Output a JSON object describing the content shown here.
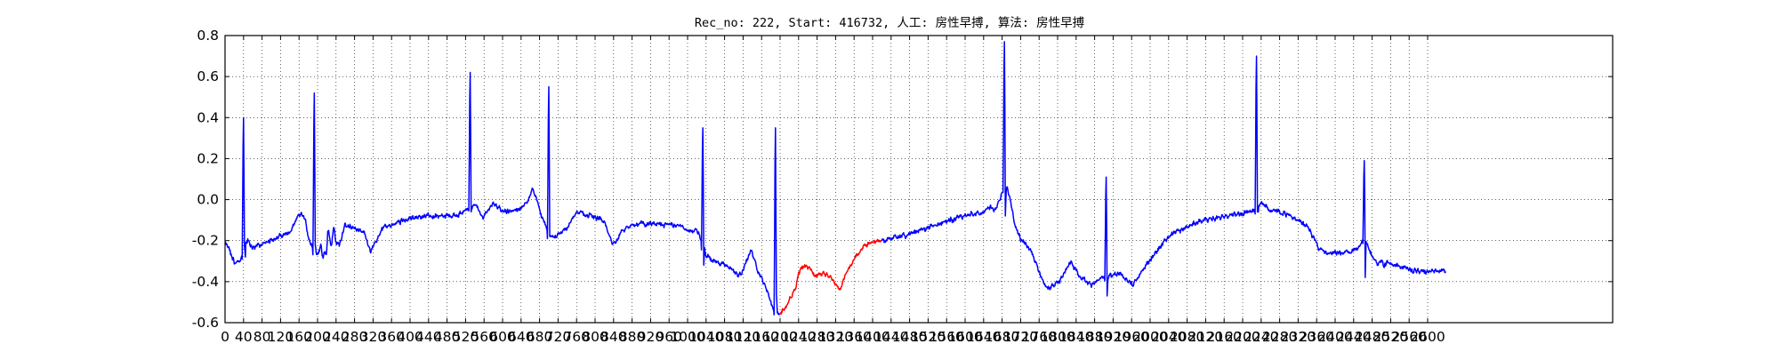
{
  "title": "Rec_no: 222, Start: 416732, 人工: 房性早搏, 算法: 房性早搏",
  "chart_data": {
    "type": "line",
    "title": "Rec_no: 222, Start: 416732, 人工: 房性早搏, 算法: 房性早搏",
    "xlabel": "",
    "ylabel": "",
    "xlim": [
      0,
      3000
    ],
    "ylim": [
      -0.6,
      0.8
    ],
    "grid": true,
    "x_tick_step": 40,
    "x_tick_max": 2600,
    "y_ticks": [
      -0.6,
      -0.4,
      -0.2,
      0.0,
      0.2,
      0.4,
      0.6,
      0.8
    ],
    "y_tick_labels": [
      "-0.6",
      "-0.4",
      "-0.2",
      "0.0",
      "0.2",
      "0.4",
      "0.6",
      "0.8"
    ],
    "normal_color": "#0000ff",
    "highlight_color": "#ff0000",
    "highlight_range": [
      1200,
      1420
    ],
    "n_samples": 2640,
    "baseline": [
      [
        0,
        -0.21
      ],
      [
        10,
        -0.25
      ],
      [
        20,
        -0.31
      ],
      [
        30,
        -0.3
      ],
      [
        40,
        -0.27
      ],
      [
        44,
        -0.22
      ],
      [
        50,
        -0.19
      ],
      [
        56,
        -0.23
      ],
      [
        80,
        -0.22
      ],
      [
        110,
        -0.19
      ],
      [
        130,
        -0.17
      ],
      [
        140,
        -0.16
      ],
      [
        150,
        -0.12
      ],
      [
        158,
        -0.07
      ],
      [
        166,
        -0.07
      ],
      [
        174,
        -0.1
      ],
      [
        180,
        -0.19
      ],
      [
        190,
        -0.24
      ],
      [
        200,
        -0.27
      ],
      [
        210,
        -0.28
      ],
      [
        220,
        -0.26
      ],
      [
        230,
        -0.24
      ],
      [
        240,
        -0.22
      ],
      [
        250,
        -0.21
      ],
      [
        215,
        -0.26
      ],
      [
        208,
        -0.22
      ],
      [
        222,
        -0.14
      ],
      [
        235,
        -0.12
      ],
      [
        260,
        -0.12
      ],
      [
        280,
        -0.14
      ],
      [
        300,
        -0.16
      ],
      [
        310,
        -0.22
      ],
      [
        315,
        -0.25
      ],
      [
        322,
        -0.23
      ],
      [
        340,
        -0.14
      ],
      [
        370,
        -0.11
      ],
      [
        400,
        -0.09
      ],
      [
        440,
        -0.08
      ],
      [
        480,
        -0.08
      ],
      [
        510,
        -0.07
      ],
      [
        525,
        -0.04
      ],
      [
        535,
        -0.03
      ],
      [
        542,
        -0.02
      ],
      [
        548,
        -0.05
      ],
      [
        555,
        -0.09
      ],
      [
        565,
        -0.06
      ],
      [
        580,
        -0.02
      ],
      [
        600,
        -0.06
      ],
      [
        620,
        -0.06
      ],
      [
        640,
        -0.04
      ],
      [
        655,
        -0.01
      ],
      [
        665,
        0.05
      ],
      [
        672,
        0.02
      ],
      [
        680,
        -0.05
      ],
      [
        690,
        -0.12
      ],
      [
        700,
        -0.17
      ],
      [
        712,
        -0.18
      ],
      [
        725,
        -0.16
      ],
      [
        738,
        -0.14
      ],
      [
        760,
        -0.06
      ],
      [
        780,
        -0.07
      ],
      [
        800,
        -0.08
      ],
      [
        820,
        -0.11
      ],
      [
        832,
        -0.18
      ],
      [
        840,
        -0.22
      ],
      [
        848,
        -0.2
      ],
      [
        858,
        -0.15
      ],
      [
        880,
        -0.12
      ],
      [
        920,
        -0.12
      ],
      [
        960,
        -0.12
      ],
      [
        985,
        -0.13
      ],
      [
        1000,
        -0.15
      ],
      [
        1010,
        -0.16
      ],
      [
        1018,
        -0.14
      ],
      [
        1026,
        -0.18
      ],
      [
        1040,
        -0.27
      ],
      [
        1060,
        -0.3
      ],
      [
        1090,
        -0.33
      ],
      [
        1110,
        -0.37
      ],
      [
        1120,
        -0.35
      ],
      [
        1132,
        -0.27
      ],
      [
        1137,
        -0.24
      ],
      [
        1145,
        -0.3
      ],
      [
        1155,
        -0.36
      ],
      [
        1170,
        -0.43
      ],
      [
        1185,
        -0.53
      ],
      [
        1198,
        -0.56
      ],
      [
        1212,
        -0.53
      ],
      [
        1222,
        -0.48
      ],
      [
        1232,
        -0.44
      ],
      [
        1240,
        -0.35
      ],
      [
        1252,
        -0.32
      ],
      [
        1262,
        -0.33
      ],
      [
        1278,
        -0.37
      ],
      [
        1292,
        -0.36
      ],
      [
        1308,
        -0.38
      ],
      [
        1320,
        -0.41
      ],
      [
        1330,
        -0.44
      ],
      [
        1340,
        -0.37
      ],
      [
        1355,
        -0.31
      ],
      [
        1370,
        -0.26
      ],
      [
        1385,
        -0.22
      ],
      [
        1420,
        -0.2
      ],
      [
        1460,
        -0.18
      ],
      [
        1500,
        -0.15
      ],
      [
        1540,
        -0.12
      ],
      [
        1580,
        -0.09
      ],
      [
        1620,
        -0.07
      ],
      [
        1640,
        -0.06
      ],
      [
        1656,
        -0.03
      ],
      [
        1664,
        -0.05
      ],
      [
        1672,
        -0.01
      ],
      [
        1680,
        0.03
      ],
      [
        1688,
        0.07
      ],
      [
        1696,
        0.02
      ],
      [
        1708,
        -0.13
      ],
      [
        1720,
        -0.19
      ],
      [
        1740,
        -0.24
      ],
      [
        1756,
        -0.32
      ],
      [
        1766,
        -0.39
      ],
      [
        1780,
        -0.43
      ],
      [
        1800,
        -0.41
      ],
      [
        1815,
        -0.36
      ],
      [
        1828,
        -0.3
      ],
      [
        1836,
        -0.33
      ],
      [
        1848,
        -0.38
      ],
      [
        1862,
        -0.4
      ],
      [
        1872,
        -0.42
      ],
      [
        1880,
        -0.4
      ],
      [
        1895,
        -0.38
      ],
      [
        1915,
        -0.37
      ],
      [
        1935,
        -0.36
      ],
      [
        1950,
        -0.39
      ],
      [
        1962,
        -0.42
      ],
      [
        1975,
        -0.38
      ],
      [
        1990,
        -0.32
      ],
      [
        2010,
        -0.26
      ],
      [
        2040,
        -0.18
      ],
      [
        2080,
        -0.13
      ],
      [
        2120,
        -0.1
      ],
      [
        2160,
        -0.08
      ],
      [
        2200,
        -0.07
      ],
      [
        2230,
        -0.05
      ],
      [
        2240,
        -0.01
      ],
      [
        2248,
        -0.03
      ],
      [
        2256,
        -0.05
      ],
      [
        2266,
        -0.05
      ],
      [
        2280,
        -0.06
      ],
      [
        2300,
        -0.08
      ],
      [
        2320,
        -0.1
      ],
      [
        2340,
        -0.13
      ],
      [
        2352,
        -0.18
      ],
      [
        2365,
        -0.24
      ],
      [
        2380,
        -0.26
      ],
      [
        2420,
        -0.26
      ],
      [
        2445,
        -0.25
      ],
      [
        2455,
        -0.22
      ],
      [
        2462,
        -0.19
      ],
      [
        2470,
        -0.22
      ],
      [
        2480,
        -0.28
      ],
      [
        2492,
        -0.31
      ],
      [
        2500,
        -0.29
      ],
      [
        2506,
        -0.33
      ],
      [
        2513,
        -0.31
      ],
      [
        2530,
        -0.32
      ],
      [
        2550,
        -0.33
      ],
      [
        2565,
        -0.35
      ]
    ],
    "spikes": [
      {
        "center": 40,
        "value": 0.4,
        "drop": -0.23
      },
      {
        "center": 193,
        "value": 0.52,
        "drop": -0.22
      },
      {
        "center": 530,
        "value": 0.62,
        "drop": -0.06
      },
      {
        "center": 700,
        "value": 0.55,
        "drop": -0.18
      },
      {
        "center": 1033,
        "value": 0.35,
        "drop": -0.32
      },
      {
        "center": 1190,
        "value": 0.35,
        "drop": -0.46
      },
      {
        "center": 1685,
        "value": 0.77,
        "drop": -0.08
      },
      {
        "center": 1905,
        "value": 0.11,
        "drop": -0.47
      },
      {
        "center": 2230,
        "value": 0.7,
        "drop": -0.06
      },
      {
        "center": 2463,
        "value": 0.19,
        "drop": -0.38
      }
    ]
  }
}
